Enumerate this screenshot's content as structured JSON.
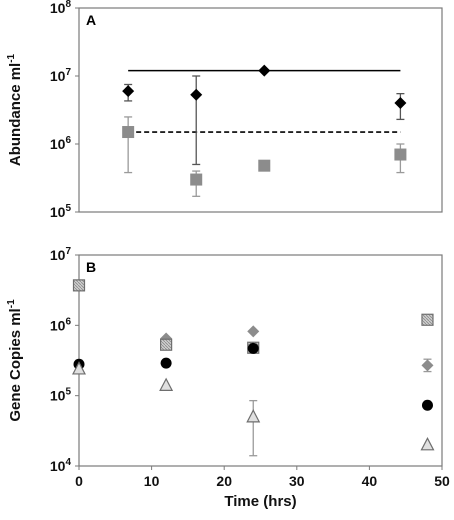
{
  "chart_data": [
    {
      "type": "scatter",
      "panel_label": "A",
      "ylabel": "Abundance ml⁻¹",
      "y_scale": "log",
      "ylim": [
        100000,
        100000000
      ],
      "xlim": [
        0,
        48
      ],
      "grid": false,
      "x_ticks_shown": false,
      "y_tick_labels": [
        {
          "value": 100000000,
          "base": "10",
          "exp": "8"
        },
        {
          "value": 10000000,
          "base": "10",
          "exp": "7"
        },
        {
          "value": 1000000,
          "base": "10",
          "exp": "6"
        },
        {
          "value": 100000,
          "base": "10",
          "exp": "5"
        }
      ],
      "series": [
        {
          "color": "#000000",
          "marker": "diamond",
          "points": [
            {
              "x": 6.5,
              "y": 6000000,
              "err_low": 4300000,
              "err_high": 7500000
            },
            {
              "x": 15.5,
              "y": 5300000,
              "err_low": 500000,
              "err_high": 10000000
            },
            {
              "x": 24.5,
              "y": 12000000
            },
            {
              "x": 42.5,
              "y": 4000000,
              "err_low": 2300000,
              "err_high": 5500000
            }
          ]
        },
        {
          "color": "#8c8c8c",
          "marker": "square",
          "points": [
            {
              "x": 6.5,
              "y": 1500000,
              "err_low": 380000,
              "err_high": 2500000
            },
            {
              "x": 15.5,
              "y": 300000,
              "err_low": 170000,
              "err_high": 400000
            },
            {
              "x": 24.5,
              "y": 480000
            },
            {
              "x": 42.5,
              "y": 700000,
              "err_low": 380000,
              "err_high": 1000000
            }
          ]
        }
      ],
      "reference_lines": [
        {
          "y": 12000000,
          "x_from": 6.5,
          "x_to": 42.5,
          "style": "solid",
          "color": "#000000"
        },
        {
          "y": 1500000,
          "x_from": 6.5,
          "x_to": 42.5,
          "style": "dashed",
          "color": "#000000"
        }
      ]
    },
    {
      "type": "scatter",
      "panel_label": "B",
      "xlabel": "Time (hrs)",
      "ylabel": "Gene Copies ml⁻¹",
      "y_scale": "log",
      "ylim": [
        10000,
        10000000
      ],
      "xlim": [
        0,
        50
      ],
      "grid": false,
      "x_ticks": [
        0,
        10,
        20,
        30,
        40,
        50
      ],
      "y_tick_labels": [
        {
          "value": 10000000,
          "base": "10",
          "exp": "7"
        },
        {
          "value": 1000000,
          "base": "10",
          "exp": "6"
        },
        {
          "value": 100000,
          "base": "10",
          "exp": "5"
        },
        {
          "value": 10000,
          "base": "10",
          "exp": "4"
        }
      ],
      "series": [
        {
          "color": "#8c8c8c",
          "marker": "diamond",
          "points": [
            {
              "x": 12,
              "y": 650000
            },
            {
              "x": 24,
              "y": 820000
            },
            {
              "x": 48,
              "y": 270000,
              "err_low": 220000,
              "err_high": 330000
            }
          ]
        },
        {
          "color": "#c8c8c8",
          "marker": "square-hatched",
          "points": [
            {
              "x": 0,
              "y": 3700000
            },
            {
              "x": 12,
              "y": 530000
            },
            {
              "x": 24,
              "y": 480000
            },
            {
              "x": 48,
              "y": 1200000
            }
          ]
        },
        {
          "color": "#000000",
          "marker": "circle",
          "points": [
            {
              "x": 0,
              "y": 280000
            },
            {
              "x": 12,
              "y": 290000
            },
            {
              "x": 24,
              "y": 470000
            },
            {
              "x": 48,
              "y": 73000
            }
          ]
        },
        {
          "color": "#e0e0e0",
          "marker": "triangle",
          "points": [
            {
              "x": 0,
              "y": 240000
            },
            {
              "x": 12,
              "y": 140000
            },
            {
              "x": 24,
              "y": 50000,
              "err_low": 14000,
              "err_high": 85000
            },
            {
              "x": 48,
              "y": 20000
            }
          ]
        }
      ]
    }
  ]
}
